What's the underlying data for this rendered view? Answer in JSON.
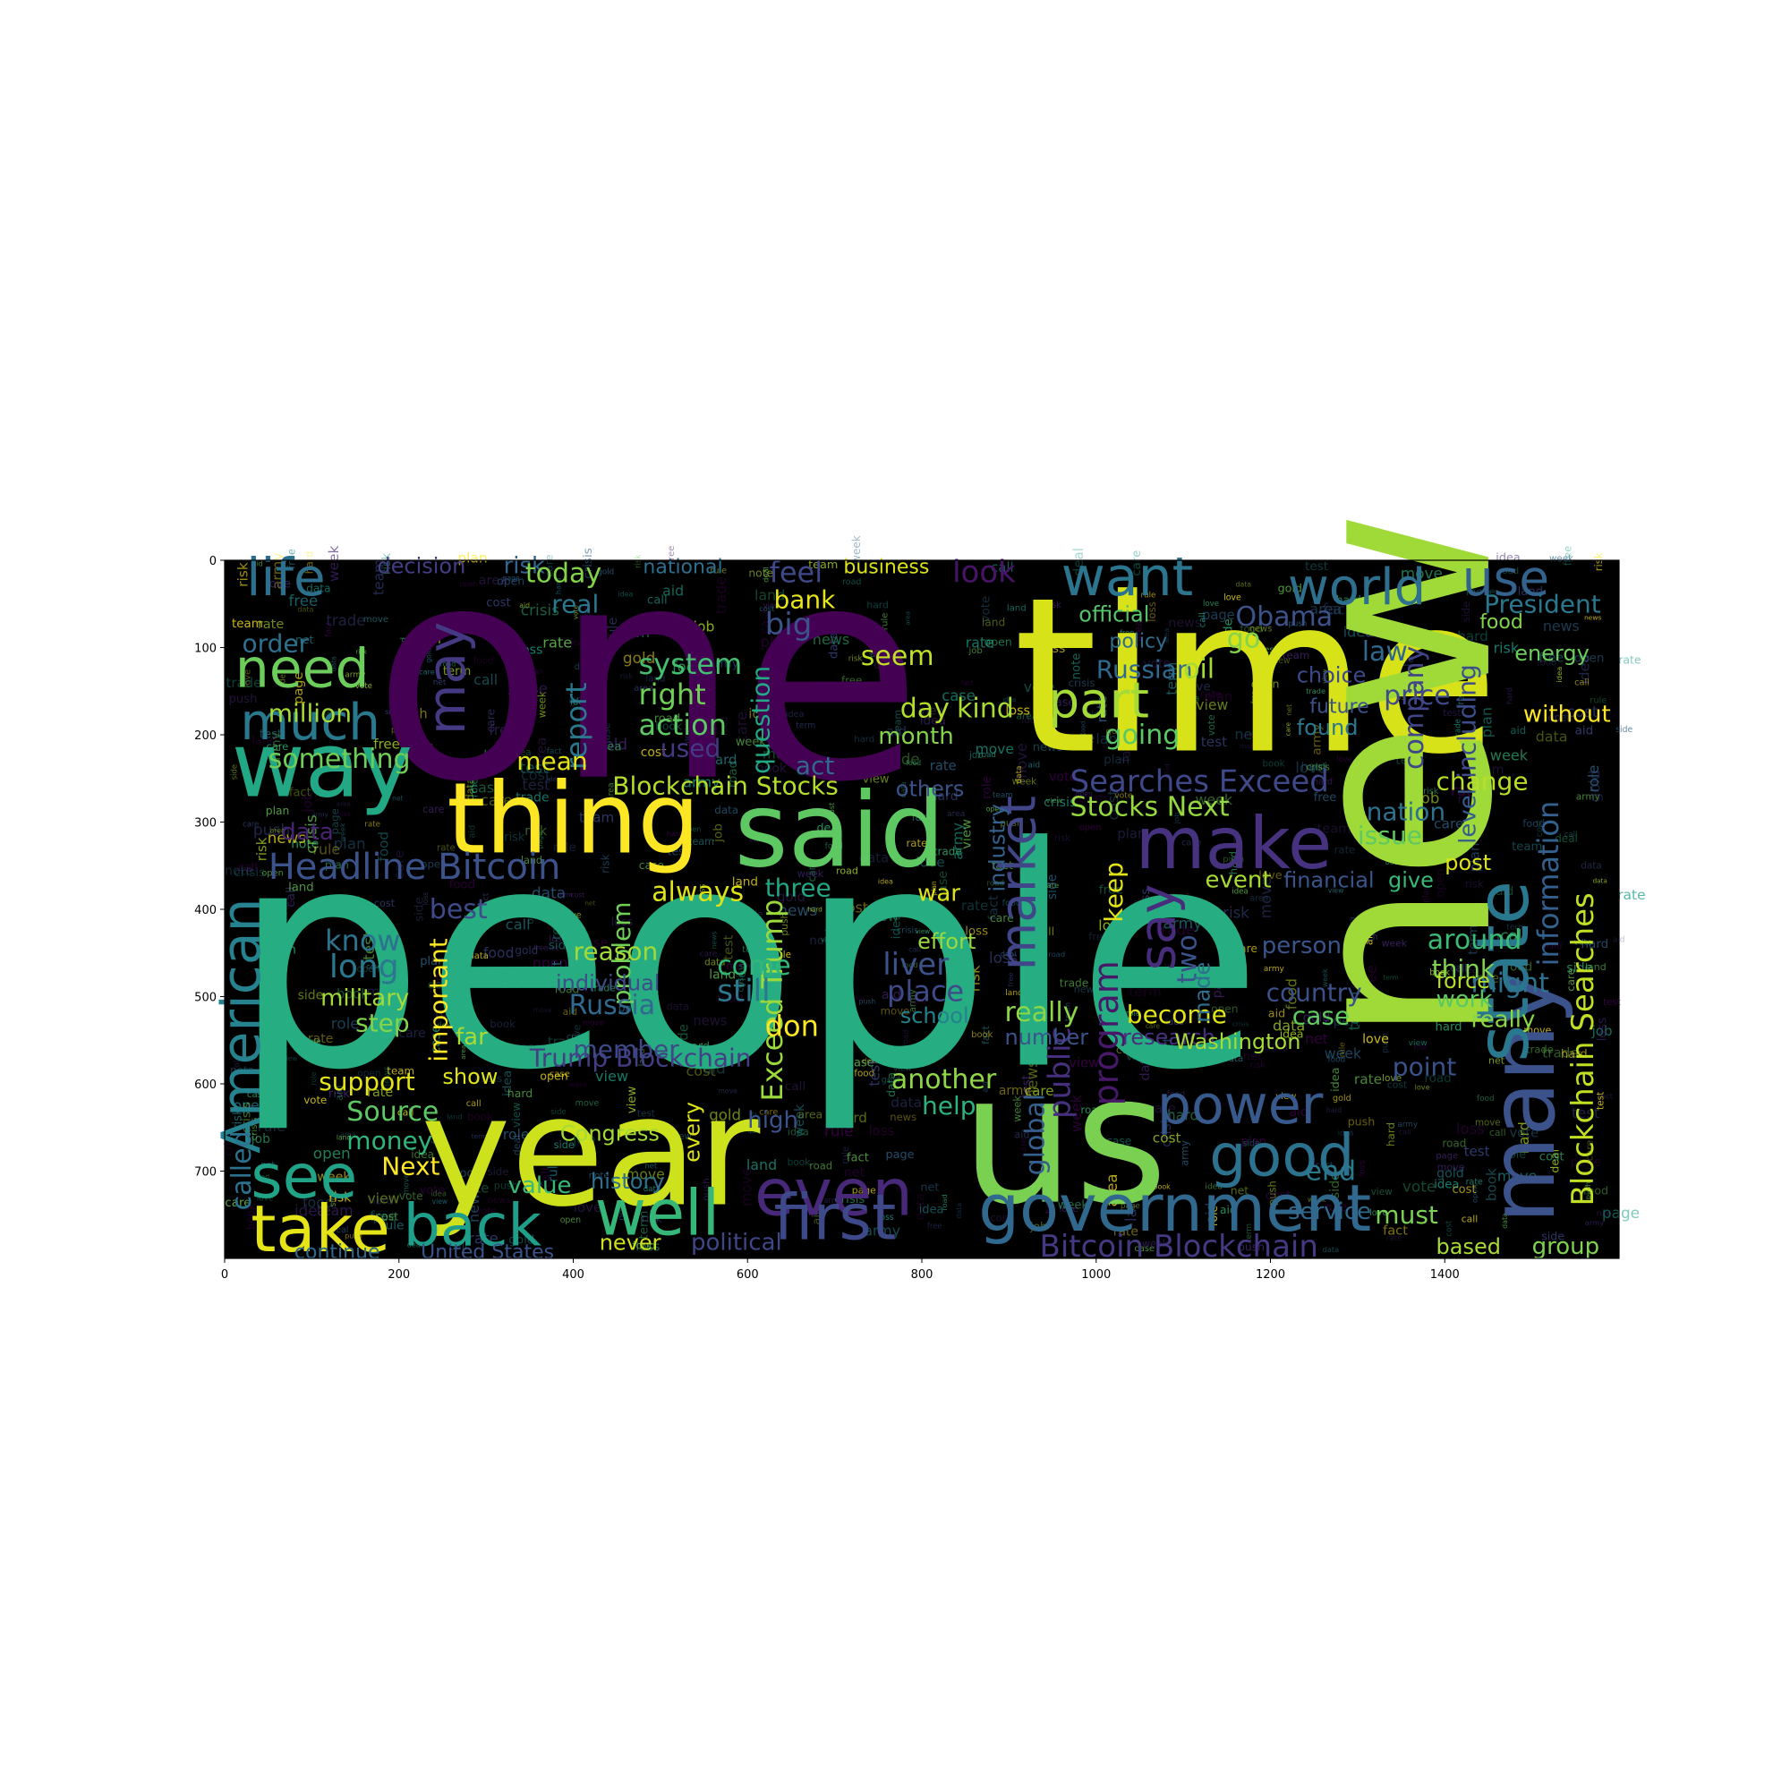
{
  "figure": {
    "background": "#ffffff",
    "canvas_background": "#000000",
    "colormap": "viridis",
    "axes": {
      "x_ticks": [
        "0",
        "200",
        "400",
        "600",
        "800",
        "1000",
        "1200",
        "1400"
      ],
      "y_ticks": [
        "0",
        "100",
        "200",
        "300",
        "400",
        "500",
        "600",
        "700"
      ],
      "x_range": [
        0,
        1600
      ],
      "y_range": [
        0,
        800
      ],
      "y_inverted": true
    }
  },
  "words": [
    {
      "text": "people",
      "color": "#26ad81"
    },
    {
      "text": "one",
      "color": "#440154"
    },
    {
      "text": "time",
      "color": "#d8e219"
    },
    {
      "text": "new",
      "color": "#a0da39"
    },
    {
      "text": "us",
      "color": "#7ad151"
    },
    {
      "text": "year",
      "color": "#cde11d"
    },
    {
      "text": "said",
      "color": "#5ec962"
    },
    {
      "text": "thing",
      "color": "#fde725"
    },
    {
      "text": "way",
      "color": "#22a884"
    },
    {
      "text": "many",
      "color": "#3b528b"
    },
    {
      "text": "state",
      "color": "#2a788e"
    },
    {
      "text": "make",
      "color": "#46327e"
    },
    {
      "text": "even",
      "color": "#482878"
    },
    {
      "text": "government",
      "color": "#31688e"
    },
    {
      "text": "well",
      "color": "#35b779"
    },
    {
      "text": "first",
      "color": "#3e4989"
    },
    {
      "text": "back",
      "color": "#1f9e89"
    },
    {
      "text": "take",
      "color": "#e5e419"
    },
    {
      "text": "see",
      "color": "#20a386"
    },
    {
      "text": "good",
      "color": "#2c728e"
    },
    {
      "text": "power",
      "color": "#38598c"
    },
    {
      "text": "American",
      "color": "#26828e"
    },
    {
      "text": "need",
      "color": "#6ccd5a"
    },
    {
      "text": "much",
      "color": "#29798e"
    },
    {
      "text": "life",
      "color": "#2d708e"
    },
    {
      "text": "want",
      "color": "#2b758e"
    },
    {
      "text": "world",
      "color": "#2e6f8e"
    },
    {
      "text": "use",
      "color": "#33628d"
    },
    {
      "text": "part",
      "color": "#a5db36"
    },
    {
      "text": "may",
      "color": "#443a83"
    },
    {
      "text": "say",
      "color": "#472d7b"
    },
    {
      "text": "market",
      "color": "#404688"
    },
    {
      "text": "Headline Bitcoin",
      "color": "#3b528b"
    },
    {
      "text": "Blockchain Stocks",
      "color": "#b5de2b"
    },
    {
      "text": "Searches Exceed",
      "color": "#3f4889"
    },
    {
      "text": "Stocks Next",
      "color": "#95d840"
    },
    {
      "text": "Trump Blockchain",
      "color": "#433e85"
    },
    {
      "text": "Bitcoin Blockchain",
      "color": "#443983"
    },
    {
      "text": "Blockchain Searches",
      "color": "#c2df23"
    },
    {
      "text": "Exceed Trump",
      "color": "#9bd93c"
    },
    {
      "text": "public",
      "color": "#46307e"
    },
    {
      "text": "global",
      "color": "#355f8d"
    },
    {
      "text": "program",
      "color": "#48186a"
    },
    {
      "text": "information",
      "color": "#34608d"
    },
    {
      "text": "President",
      "color": "#2a788e"
    },
    {
      "text": "Obama",
      "color": "#3b528b"
    },
    {
      "text": "law",
      "color": "#31688e"
    },
    {
      "text": "price",
      "color": "#3e4a89"
    },
    {
      "text": "company",
      "color": "#404588"
    },
    {
      "text": "including",
      "color": "#3d4d8a"
    },
    {
      "text": "level",
      "color": "#355e8d"
    },
    {
      "text": "change",
      "color": "#b8de29"
    },
    {
      "text": "nation",
      "color": "#2d718e"
    },
    {
      "text": "event",
      "color": "#a8db34"
    },
    {
      "text": "financial",
      "color": "#3a548c"
    },
    {
      "text": "give",
      "color": "#38b977"
    },
    {
      "text": "around",
      "color": "#3bbb75"
    },
    {
      "text": "think",
      "color": "#7fd34e"
    },
    {
      "text": "work",
      "color": "#5cc863"
    },
    {
      "text": "point",
      "color": "#3a538b"
    },
    {
      "text": "country",
      "color": "#3c508b"
    },
    {
      "text": "case",
      "color": "#62cb5f"
    },
    {
      "text": "might",
      "color": "#2d718e"
    },
    {
      "text": "become",
      "color": "#e2e418"
    },
    {
      "text": "research",
      "color": "#472f7d"
    },
    {
      "text": "really",
      "color": "#8bd646"
    },
    {
      "text": "number",
      "color": "#3b528b"
    },
    {
      "text": "another",
      "color": "#8fd744"
    },
    {
      "text": "help",
      "color": "#2db27d"
    },
    {
      "text": "school",
      "color": "#26828e"
    },
    {
      "text": "place",
      "color": "#3e4a89"
    },
    {
      "text": "liver",
      "color": "#3b528b"
    },
    {
      "text": "effort",
      "color": "#9bd93c"
    },
    {
      "text": "war",
      "color": "#dde318"
    },
    {
      "text": "three",
      "color": "#22a785"
    },
    {
      "text": "problem",
      "color": "#70cf57"
    },
    {
      "text": "still",
      "color": "#2a778e"
    },
    {
      "text": "come",
      "color": "#32b67a"
    },
    {
      "text": "don",
      "color": "#fde725"
    },
    {
      "text": "Russia",
      "color": "#31688e"
    },
    {
      "text": "reason",
      "color": "#a2da37"
    },
    {
      "text": "individual",
      "color": "#3e4c8a"
    },
    {
      "text": "important",
      "color": "#fde725"
    },
    {
      "text": "military",
      "color": "#a5db36"
    },
    {
      "text": "long",
      "color": "#2a788e"
    },
    {
      "text": "know",
      "color": "#2c728e"
    },
    {
      "text": "support",
      "color": "#e5e419"
    },
    {
      "text": "Source",
      "color": "#5cc863"
    },
    {
      "text": "money",
      "color": "#31b57b"
    },
    {
      "text": "Next",
      "color": "#fde725"
    },
    {
      "text": "value",
      "color": "#38b977"
    },
    {
      "text": "history",
      "color": "#2c718e"
    },
    {
      "text": "political",
      "color": "#3f4788"
    },
    {
      "text": "never",
      "color": "#d0e11c"
    },
    {
      "text": "United States",
      "color": "#3a548c"
    },
    {
      "text": "continue",
      "color": "#30698e"
    },
    {
      "text": "called",
      "color": "#2c728e"
    },
    {
      "text": "data",
      "color": "#482374"
    },
    {
      "text": "something",
      "color": "#6ece58"
    },
    {
      "text": "million",
      "color": "#a8db34"
    },
    {
      "text": "order",
      "color": "#2d708e"
    },
    {
      "text": "decision",
      "color": "#433d84"
    },
    {
      "text": "risk",
      "color": "#32658e"
    },
    {
      "text": "today",
      "color": "#84d44b"
    },
    {
      "text": "national",
      "color": "#2e6e8e"
    },
    {
      "text": "business",
      "color": "#dde318"
    },
    {
      "text": "feel",
      "color": "#3f4889"
    },
    {
      "text": "look",
      "color": "#481467"
    },
    {
      "text": "bank",
      "color": "#e5e419"
    },
    {
      "text": "big",
      "color": "#3b528b"
    },
    {
      "text": "real",
      "color": "#2a788e"
    },
    {
      "text": "system",
      "color": "#44bf70"
    },
    {
      "text": "right",
      "color": "#70cf57"
    },
    {
      "text": "action",
      "color": "#5ec962"
    },
    {
      "text": "report",
      "color": "#2a778e"
    },
    {
      "text": "question",
      "color": "#22a884"
    },
    {
      "text": "seem",
      "color": "#c0df25"
    },
    {
      "text": "day",
      "color": "#b5de2b"
    },
    {
      "text": "kind",
      "color": "#a8db34"
    },
    {
      "text": "month",
      "color": "#84d44b"
    },
    {
      "text": "going",
      "color": "#5ac864"
    },
    {
      "text": "Russian",
      "color": "#30698e"
    },
    {
      "text": "oil",
      "color": "#a5db36"
    },
    {
      "text": "official",
      "color": "#54c568"
    },
    {
      "text": "policy",
      "color": "#2e6e8e"
    },
    {
      "text": "go",
      "color": "#84d44b"
    },
    {
      "text": "choice",
      "color": "#3e4989"
    },
    {
      "text": "found",
      "color": "#2a788e"
    },
    {
      "text": "future",
      "color": "#3b528b"
    },
    {
      "text": "without",
      "color": "#fde725"
    },
    {
      "text": "energy",
      "color": "#6ccd5a"
    },
    {
      "text": "food",
      "color": "#84d44b"
    },
    {
      "text": "mean",
      "color": "#e5e419"
    },
    {
      "text": "used",
      "color": "#443983"
    },
    {
      "text": "act",
      "color": "#31688e"
    },
    {
      "text": "others",
      "color": "#3b528b"
    },
    {
      "text": "industry",
      "color": "#34618d"
    },
    {
      "text": "keep",
      "color": "#e2e418"
    },
    {
      "text": "person",
      "color": "#3a548c"
    },
    {
      "text": "really",
      "color": "#8bd646"
    },
    {
      "text": "force",
      "color": "#b5de2b"
    },
    {
      "text": "post",
      "color": "#dde318"
    },
    {
      "text": "issue",
      "color": "#5ec962"
    },
    {
      "text": "must",
      "color": "#7ad151"
    },
    {
      "text": "group",
      "color": "#7fd34e"
    },
    {
      "text": "based",
      "color": "#a8db34"
    },
    {
      "text": "service",
      "color": "#31688e"
    },
    {
      "text": "end",
      "color": "#2a788e"
    },
    {
      "text": "two",
      "color": "#3b528b"
    },
    {
      "text": "made",
      "color": "#2e6e8e"
    },
    {
      "text": "Washington",
      "color": "#a5db36"
    },
    {
      "text": "always",
      "color": "#dde318"
    },
    {
      "text": "best",
      "color": "#3e4a89"
    },
    {
      "text": "high",
      "color": "#3b528b"
    },
    {
      "text": "every",
      "color": "#dde318"
    },
    {
      "text": "Congress",
      "color": "#a5db36"
    },
    {
      "text": "member",
      "color": "#3e4989"
    },
    {
      "text": "show",
      "color": "#e2e418"
    },
    {
      "text": "step",
      "color": "#84d44b"
    },
    {
      "text": "far",
      "color": "#a8db34"
    },
    {
      "text": "now",
      "color": "#2a788e"
    }
  ]
}
